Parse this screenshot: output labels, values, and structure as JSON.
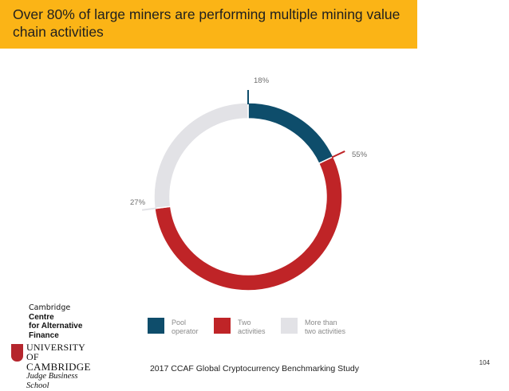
{
  "slide": {
    "title": "Over 80% of large miners are performing multiple mining value chain activities",
    "footer": "2017 CCAF Global Cryptocurrency Benchmarking Study",
    "page_number": "104"
  },
  "logos": {
    "ccaf": [
      "Cambridge",
      "Centre",
      "for Alternative",
      "Finance"
    ],
    "university": [
      "UNIVERSITY OF",
      "CAMBRIDGE",
      "Judge Business School"
    ]
  },
  "colors": {
    "title_bar": "#fbb416",
    "pool_operator": "#0e4d6b",
    "two_activities": "#bf2427",
    "more_than_two": "#e2e2e6"
  },
  "chart_data": {
    "type": "pie",
    "subtype": "donut",
    "title": "",
    "categories": [
      "Pool operator",
      "Two activities",
      "More than two activities"
    ],
    "values": [
      18,
      55,
      27
    ],
    "data_labels": [
      "18%",
      "55%",
      "27%"
    ],
    "legend": {
      "placement": "bottom",
      "entries": [
        {
          "label_lines": [
            "Pool",
            "operator"
          ]
        },
        {
          "label_lines": [
            "Two",
            "activities"
          ]
        },
        {
          "label_lines": [
            "More than",
            "two activities"
          ]
        }
      ]
    }
  }
}
